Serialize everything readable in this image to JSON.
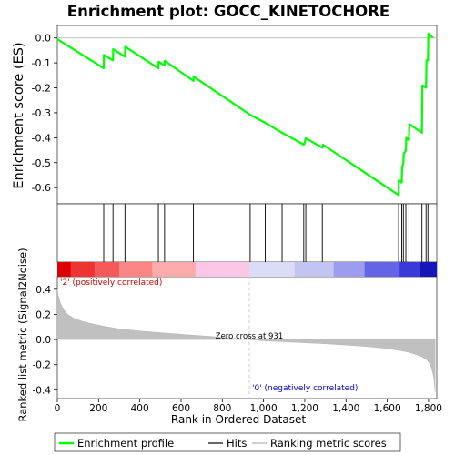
{
  "chart_data": {
    "type": "line",
    "title": "Enrichment plot: GOCC_KINETOCHORE",
    "xlabel": "Rank in Ordered Dataset",
    "ylabel_top": "Enrichment score (ES)",
    "ylabel_bottom": "Ranked list metric (Signal2Noise)",
    "n_genes": 1840,
    "xlim": [
      0,
      1840
    ],
    "es_ylim": [
      -0.665,
      0.05
    ],
    "metric_ylim": [
      -0.47,
      0.5
    ],
    "x_ticks": [
      {
        "value": 0,
        "label": "0"
      },
      {
        "value": 200,
        "label": "200"
      },
      {
        "value": 400,
        "label": "400"
      },
      {
        "value": 600,
        "label": "600"
      },
      {
        "value": 800,
        "label": "800"
      },
      {
        "value": 1000,
        "label": "1,000"
      },
      {
        "value": 1200,
        "label": "1,200"
      },
      {
        "value": 1400,
        "label": "1,400"
      },
      {
        "value": 1600,
        "label": "1,600"
      },
      {
        "value": 1800,
        "label": "1,800"
      }
    ],
    "es_ticks": [
      {
        "value": 0.0,
        "label": "0.0"
      },
      {
        "value": -0.1,
        "label": "-0.1"
      },
      {
        "value": -0.2,
        "label": "-0.2"
      },
      {
        "value": -0.3,
        "label": "-0.3"
      },
      {
        "value": -0.4,
        "label": "-0.4"
      },
      {
        "value": -0.5,
        "label": "-0.5"
      },
      {
        "value": -0.6,
        "label": "-0.6"
      }
    ],
    "metric_ticks": [
      {
        "value": 0.4,
        "label": "0.4"
      },
      {
        "value": 0.2,
        "label": "0.2"
      },
      {
        "value": 0.0,
        "label": "0.0"
      },
      {
        "value": -0.2,
        "label": "-0.2"
      },
      {
        "value": -0.4,
        "label": "-0.4"
      }
    ],
    "enrichment_profile": {
      "name": "Enrichment profile",
      "color": "#00ff00",
      "x": [
        0,
        225,
        226,
        270,
        271,
        328,
        329,
        490,
        491,
        520,
        521,
        660,
        661,
        935,
        1008,
        1090,
        1195,
        1197,
        1205,
        1285,
        1288,
        1655,
        1656,
        1670,
        1672,
        1678,
        1680,
        1690,
        1692,
        1705,
        1707,
        1768,
        1770,
        1788,
        1790,
        1797,
        1799,
        1822
      ],
      "y": [
        -0.005,
        -0.122,
        -0.068,
        -0.09,
        -0.045,
        -0.075,
        -0.035,
        -0.122,
        -0.095,
        -0.11,
        -0.092,
        -0.172,
        -0.155,
        -0.308,
        -0.34,
        -0.38,
        -0.428,
        -0.425,
        -0.402,
        -0.44,
        -0.428,
        -0.63,
        -0.57,
        -0.58,
        -0.52,
        -0.5,
        -0.463,
        -0.452,
        -0.4,
        -0.41,
        -0.345,
        -0.38,
        -0.19,
        -0.2,
        -0.09,
        -0.09,
        0.018,
        0.0
      ]
    },
    "hits": {
      "name": "Hits",
      "x": [
        225,
        270,
        328,
        490,
        520,
        660,
        935,
        1008,
        1090,
        1195,
        1205,
        1285,
        1655,
        1670,
        1678,
        1690,
        1705,
        1768,
        1788,
        1797
      ]
    },
    "ranking_metric": {
      "name": "Ranking metric scores",
      "color": "#c0c0c0",
      "x": [
        0,
        5,
        15,
        30,
        50,
        80,
        120,
        170,
        230,
        300,
        400,
        500,
        600,
        700,
        800,
        931,
        1000,
        1100,
        1200,
        1300,
        1400,
        1500,
        1600,
        1650,
        1700,
        1740,
        1770,
        1790,
        1805,
        1815,
        1825,
        1832
      ],
      "y": [
        0.4,
        0.35,
        0.29,
        0.24,
        0.2,
        0.17,
        0.145,
        0.125,
        0.105,
        0.085,
        0.068,
        0.055,
        0.042,
        0.03,
        0.018,
        0.0,
        -0.01,
        -0.018,
        -0.026,
        -0.034,
        -0.044,
        -0.056,
        -0.072,
        -0.085,
        -0.1,
        -0.12,
        -0.14,
        -0.16,
        -0.19,
        -0.23,
        -0.3,
        -0.42
      ]
    },
    "zero_cross": {
      "value": 931,
      "label": "Zero cross at 931"
    },
    "positive_label": "'2' (positively correlated)",
    "negative_label": "'0' (negatively correlated)",
    "legend": {
      "placement": "bottom",
      "items": [
        "Enrichment profile",
        "Hits",
        "Ranking metric scores"
      ]
    },
    "colors": {
      "profile": "#00ff00",
      "positive_text": "#cc0000",
      "negative_text": "#0000cc",
      "metric_fill": "#c0c0c0"
    },
    "heat_bar": [
      {
        "from": 0,
        "to": 65,
        "color": "#dd0000"
      },
      {
        "from": 65,
        "to": 180,
        "color": "#ee3333"
      },
      {
        "from": 180,
        "to": 300,
        "color": "#f45a5a"
      },
      {
        "from": 300,
        "to": 460,
        "color": "#fa8585"
      },
      {
        "from": 460,
        "to": 670,
        "color": "#fcabab"
      },
      {
        "from": 670,
        "to": 931,
        "color": "#fcc6e6"
      },
      {
        "from": 931,
        "to": 1150,
        "color": "#dcdcf6"
      },
      {
        "from": 1150,
        "to": 1340,
        "color": "#c4c4f2"
      },
      {
        "from": 1340,
        "to": 1490,
        "color": "#9d9def"
      },
      {
        "from": 1490,
        "to": 1660,
        "color": "#6464e6"
      },
      {
        "from": 1660,
        "to": 1760,
        "color": "#3a3ad8"
      },
      {
        "from": 1760,
        "to": 1840,
        "color": "#1515b8"
      }
    ]
  }
}
